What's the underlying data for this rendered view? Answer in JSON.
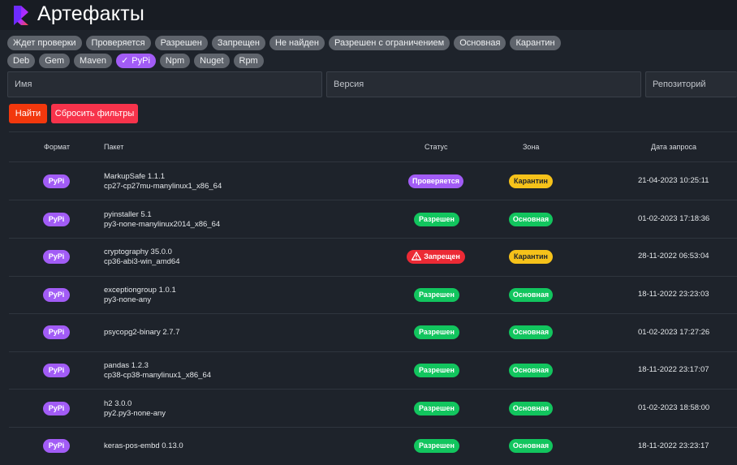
{
  "app": {
    "title": "Артефакты"
  },
  "filters": {
    "statuses": [
      "Ждет проверки",
      "Проверяется",
      "Разрешен",
      "Запрещен",
      "Не найден",
      "Разрешен с ограничением",
      "Основная",
      "Карантин"
    ],
    "formats": [
      "Deb",
      "Gem",
      "Maven",
      "PyPi",
      "Npm",
      "Nuget",
      "Rpm"
    ],
    "active_format": "PyPi"
  },
  "search": {
    "name_placeholder": "Имя",
    "version_placeholder": "Версия",
    "repo_placeholder": "Репозиторий",
    "find_label": "Найти",
    "reset_label": "Сбросить фильтры"
  },
  "table": {
    "headers": {
      "format": "Формат",
      "package": "Пакет",
      "status": "Статус",
      "zone": "Зона",
      "date": "Дата запроса"
    },
    "rows": [
      {
        "format": "PyPi",
        "name": "MarkupSafe 1.1.1",
        "file": "cp27-cp27mu-manylinux1_x86_64",
        "status": "Проверяется",
        "zone": "Карантин",
        "date": "21-04-2023 10:25:11"
      },
      {
        "format": "PyPi",
        "name": "pyinstaller 5.1",
        "file": "py3-none-manylinux2014_x86_64",
        "status": "Разрешен",
        "zone": "Основная",
        "date": "01-02-2023 17:18:36"
      },
      {
        "format": "PyPi",
        "name": "cryptography 35.0.0",
        "file": "cp36-abi3-win_amd64",
        "status": "Запрещен",
        "zone": "Карантин",
        "date": "28-11-2022 06:53:04"
      },
      {
        "format": "PyPi",
        "name": "exceptiongroup 1.0.1",
        "file": "py3-none-any",
        "status": "Разрешен",
        "zone": "Основная",
        "date": "18-11-2022 23:23:03"
      },
      {
        "format": "PyPi",
        "name": "psycopg2-binary 2.7.7",
        "file": "",
        "status": "Разрешен",
        "zone": "Основная",
        "date": "01-02-2023 17:27:26"
      },
      {
        "format": "PyPi",
        "name": "pandas 1.2.3",
        "file": "cp38-cp38-manylinux1_x86_64",
        "status": "Разрешен",
        "zone": "Основная",
        "date": "18-11-2022 23:17:07"
      },
      {
        "format": "PyPi",
        "name": "h2 3.0.0",
        "file": "py2.py3-none-any",
        "status": "Разрешен",
        "zone": "Основная",
        "date": "01-02-2023 18:58:00"
      },
      {
        "format": "PyPi",
        "name": "keras-pos-embd 0.13.0",
        "file": "",
        "status": "Разрешен",
        "zone": "Основная",
        "date": "18-11-2022 23:23:17"
      }
    ]
  },
  "colors": {
    "accent_purple": "#a25cf6",
    "ok_green": "#12c55e",
    "ban_red": "#ec2a35",
    "quarantine_yellow": "#f6c21a",
    "find_orange": "#f2380d",
    "reset_red": "#f7334b"
  }
}
